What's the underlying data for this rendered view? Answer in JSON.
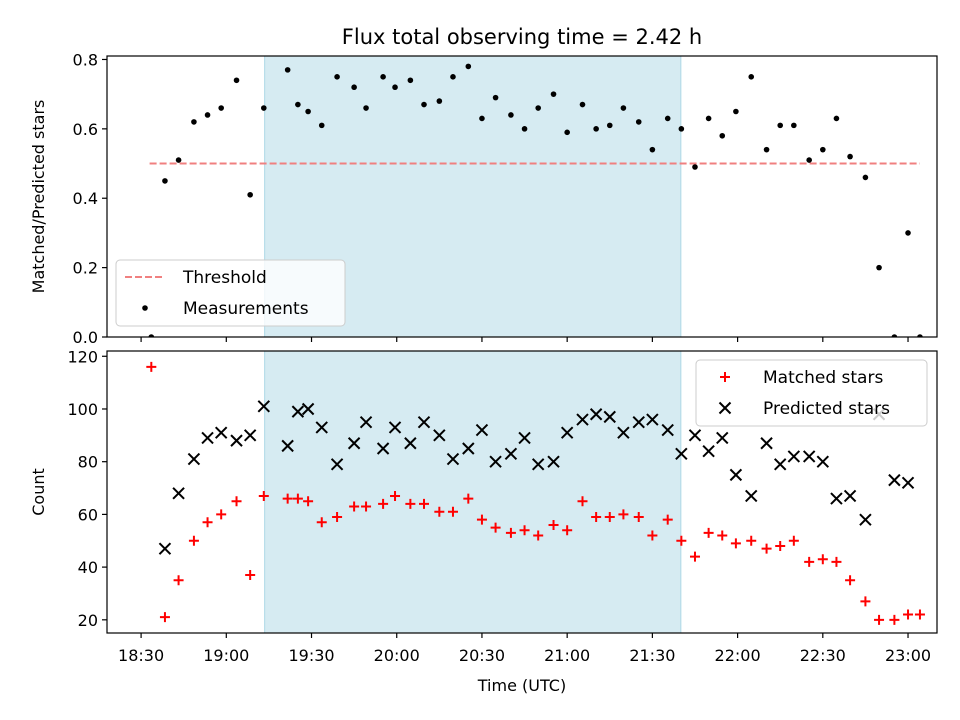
{
  "chart_data": {
    "title": "Flux total observing time = 2.42 h",
    "x_ticks": [
      {
        "t": 18.5,
        "label": "18:30"
      },
      {
        "t": 19.0,
        "label": "19:00"
      },
      {
        "t": 19.5,
        "label": "19:30"
      },
      {
        "t": 20.0,
        "label": "20:00"
      },
      {
        "t": 20.5,
        "label": "20:30"
      },
      {
        "t": 21.0,
        "label": "21:00"
      },
      {
        "t": 21.5,
        "label": "21:30"
      },
      {
        "t": 22.0,
        "label": "22:00"
      },
      {
        "t": 22.5,
        "label": "22:30"
      },
      {
        "t": 23.0,
        "label": "23:00"
      }
    ],
    "xlabel": "Time (UTC)",
    "xlim": [
      18.3,
      23.17
    ],
    "shaded_span": [
      19.225,
      21.667
    ],
    "colors": {
      "shade": "#add8e6",
      "threshold": "#f08080",
      "matched": "#ff0000",
      "predicted": "#000000",
      "measurement": "#000000"
    },
    "panels": [
      {
        "type": "scatter",
        "ylabel": "Matched/Predicted stars",
        "ylim": [
          0,
          0.81
        ],
        "yticks": [
          "0.0",
          "0.2",
          "0.4",
          "0.6",
          "0.8"
        ],
        "ytick_values": [
          0.0,
          0.2,
          0.4,
          0.6,
          0.8
        ],
        "legend": {
          "placement": "lower-left",
          "entries": [
            "Threshold",
            "Measurements"
          ]
        },
        "threshold": {
          "name": "Threshold",
          "value": 0.5,
          "x_range": [
            18.55,
            23.07
          ]
        },
        "series": [
          {
            "name": "Measurements",
            "x": [
              18.56,
              18.64,
              18.72,
              18.81,
              18.89,
              18.97,
              19.06,
              19.14,
              19.22,
              19.36,
              19.42,
              19.48,
              19.56,
              19.65,
              19.75,
              19.82,
              19.92,
              19.99,
              20.08,
              20.16,
              20.25,
              20.33,
              20.42,
              20.5,
              20.58,
              20.67,
              20.75,
              20.83,
              20.92,
              21.0,
              21.09,
              21.17,
              21.25,
              21.33,
              21.42,
              21.5,
              21.59,
              21.67,
              21.75,
              21.83,
              21.91,
              21.99,
              22.08,
              22.17,
              22.25,
              22.33,
              22.42,
              22.5,
              22.58,
              22.66,
              22.75,
              22.83,
              22.92,
              23.0,
              23.07
            ],
            "y": [
              0.0,
              0.45,
              0.51,
              0.62,
              0.64,
              0.66,
              0.74,
              0.41,
              0.66,
              0.77,
              0.67,
              0.65,
              0.61,
              0.75,
              0.72,
              0.66,
              0.75,
              0.72,
              0.74,
              0.67,
              0.68,
              0.75,
              0.78,
              0.63,
              0.69,
              0.64,
              0.6,
              0.66,
              0.7,
              0.59,
              0.67,
              0.6,
              0.61,
              0.66,
              0.62,
              0.54,
              0.63,
              0.6,
              0.49,
              0.63,
              0.58,
              0.65,
              0.75,
              0.54,
              0.61,
              0.61,
              0.51,
              0.54,
              0.63,
              0.52,
              0.46,
              0.2,
              0.0,
              0.3,
              0.0
            ]
          }
        ]
      },
      {
        "type": "scatter",
        "ylabel": "Count",
        "ylim": [
          15,
          122
        ],
        "yticks": [
          "20",
          "40",
          "60",
          "80",
          "100",
          "120"
        ],
        "ytick_values": [
          20,
          40,
          60,
          80,
          100,
          120
        ],
        "legend": {
          "placement": "upper-right",
          "entries": [
            "Matched stars",
            "Predicted stars"
          ]
        },
        "series": [
          {
            "name": "Matched stars",
            "marker": "plus",
            "x": [
              18.56,
              18.64,
              18.72,
              18.81,
              18.89,
              18.97,
              19.06,
              19.14,
              19.22,
              19.36,
              19.42,
              19.48,
              19.56,
              19.65,
              19.75,
              19.82,
              19.92,
              19.99,
              20.08,
              20.16,
              20.25,
              20.33,
              20.42,
              20.5,
              20.58,
              20.67,
              20.75,
              20.83,
              20.92,
              21.0,
              21.09,
              21.17,
              21.25,
              21.33,
              21.42,
              21.5,
              21.59,
              21.67,
              21.75,
              21.83,
              21.91,
              21.99,
              22.08,
              22.17,
              22.25,
              22.33,
              22.42,
              22.5,
              22.58,
              22.66,
              22.75,
              22.83,
              22.92,
              23.0,
              23.07
            ],
            "y": [
              116,
              21,
              35,
              50,
              57,
              60,
              65,
              37,
              67,
              66,
              66,
              65,
              57,
              59,
              63,
              63,
              64,
              67,
              64,
              64,
              61,
              61,
              66,
              58,
              55,
              53,
              54,
              52,
              56,
              54,
              65,
              59,
              59,
              60,
              59,
              52,
              58,
              50,
              44,
              53,
              52,
              49,
              50,
              47,
              48,
              50,
              42,
              43,
              42,
              35,
              27,
              20,
              20,
              22,
              22
            ]
          },
          {
            "name": "Predicted stars",
            "marker": "x",
            "x": [
              18.64,
              18.72,
              18.81,
              18.89,
              18.97,
              19.06,
              19.14,
              19.22,
              19.36,
              19.42,
              19.48,
              19.56,
              19.65,
              19.75,
              19.82,
              19.92,
              19.99,
              20.08,
              20.16,
              20.25,
              20.33,
              20.42,
              20.5,
              20.58,
              20.67,
              20.75,
              20.83,
              20.92,
              21.0,
              21.09,
              21.17,
              21.25,
              21.33,
              21.42,
              21.5,
              21.59,
              21.67,
              21.75,
              21.83,
              21.91,
              21.99,
              22.08,
              22.17,
              22.25,
              22.33,
              22.42,
              22.5,
              22.58,
              22.66,
              22.75,
              22.83,
              22.92,
              23.0
            ],
            "y": [
              47,
              68,
              81,
              89,
              91,
              88,
              90,
              101,
              86,
              99,
              100,
              93,
              79,
              87,
              95,
              85,
              93,
              87,
              95,
              90,
              81,
              85,
              92,
              80,
              83,
              89,
              79,
              80,
              91,
              96,
              98,
              97,
              91,
              95,
              96,
              92,
              83,
              90,
              84,
              89,
              75,
              67,
              87,
              79,
              82,
              82,
              80,
              66,
              67,
              58,
              98,
              73,
              72
            ]
          }
        ]
      }
    ]
  }
}
